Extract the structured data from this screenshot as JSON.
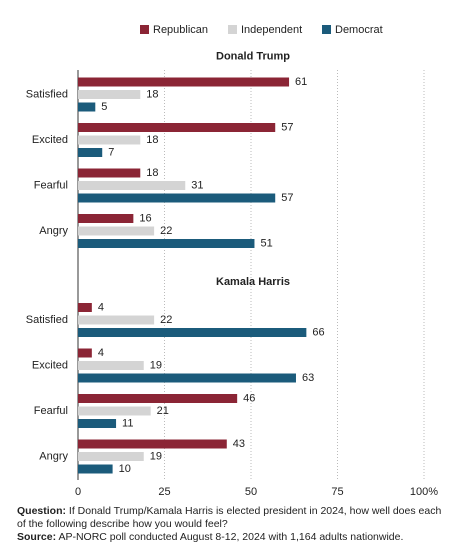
{
  "chart_data": {
    "type": "bar",
    "panels": [
      {
        "title": "Donald Trump"
      },
      {
        "title": "Kamala Harris"
      }
    ],
    "categories": [
      "Satisfied",
      "Excited",
      "Fearful",
      "Angry",
      "Satisfied",
      "Excited",
      "Fearful",
      "Angry"
    ],
    "series": [
      {
        "name": "Republican",
        "color": "#8b2535",
        "values": [
          61,
          57,
          18,
          16,
          4,
          4,
          46,
          43
        ]
      },
      {
        "name": "Independent",
        "color": "#d4d4d4",
        "values": [
          18,
          18,
          31,
          22,
          22,
          19,
          21,
          19
        ]
      },
      {
        "name": "Democrat",
        "color": "#1b5b7b",
        "values": [
          5,
          7,
          57,
          51,
          66,
          63,
          11,
          10
        ]
      }
    ],
    "xlim": [
      0,
      100
    ],
    "xticks": [
      0,
      25,
      50,
      75,
      {
        "value": 100,
        "label": "100%"
      }
    ],
    "grid": true
  },
  "footer": {
    "question_label": "Question:",
    "question": "If Donald Trump/Kamala Harris is elected president in 2024, how well does each of the following describe how you would feel?",
    "source_label": "Source:",
    "source": "AP-NORC poll conducted August 8-12, 2024 with 1,164 adults nationwide."
  }
}
